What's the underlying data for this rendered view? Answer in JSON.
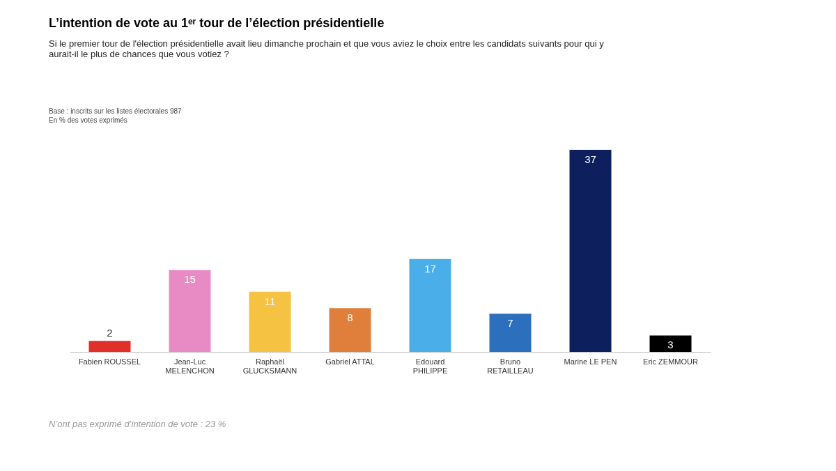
{
  "chart_data": {
    "type": "bar",
    "title": "L’intention de vote au 1ᵉʳ tour de l’élection présidentielle",
    "subtitle": "Si le premier tour de l'élection présidentielle avait lieu dimanche prochain et que vous aviez le choix entre les candidats suivants pour qui y aurait-il le plus de chances que vous votiez ?",
    "annotations": [
      "Base : inscrits sur les listes électorales 987",
      "En % des votes exprimés",
      "N’ont pas exprimé d’intention de vote : 23 %"
    ],
    "categories": [
      "Fabien ROUSSEL",
      "Jean-Luc MELENCHON",
      "Raphaël GLUCKSMANN",
      "Gabriel ATTAL",
      "Edouard PHILIPPE",
      "Bruno RETAILLEAU",
      "Marine LE PEN",
      "Eric ZEMMOUR"
    ],
    "values": [
      2,
      15,
      11,
      8,
      17,
      7,
      37,
      3
    ],
    "colors": [
      "#e0302a",
      "#e88bc4",
      "#f5c242",
      "#e07f3c",
      "#4aaee8",
      "#2c6fbd",
      "#0d1f5c",
      "#000000"
    ],
    "data_labels": true,
    "grid": false
  }
}
